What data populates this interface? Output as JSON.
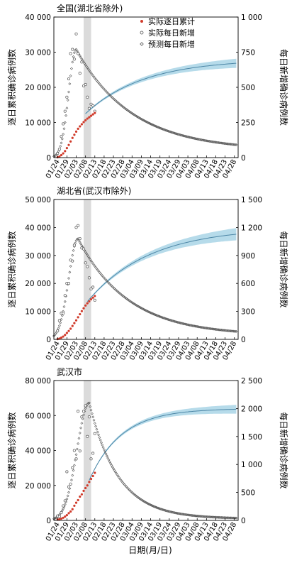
{
  "figure": {
    "xlabel": "日期(月/日)"
  },
  "legend": {
    "entries": [
      {
        "label": "实际逐日累计",
        "color": "#d03a2a",
        "marker": "dot"
      },
      {
        "label": "实际每日新增",
        "color": "#555555",
        "marker": "open-circle"
      },
      {
        "label": "预测每日新增",
        "color": "#555555",
        "marker": "open-diamond"
      }
    ]
  },
  "colors": {
    "band": "#a9d5e6",
    "line": "#4c86a6",
    "shade": "#cfcfcf"
  },
  "chart_data": [
    {
      "type": "scatter",
      "title": "全国(湖北省除外)",
      "ylabel_left": "逐日累积确诊病例数",
      "ylabel_right": "每日新增确诊病例数",
      "x_tick_labels": [
        "01/24",
        "01/29",
        "02/03",
        "02/08",
        "02/13",
        "02/18",
        "02/23",
        "02/28",
        "03/04",
        "03/09",
        "03/14",
        "03/19",
        "03/24",
        "03/29",
        "04/03",
        "04/08",
        "04/13",
        "04/18",
        "04/23",
        "04/28"
      ],
      "x_range_day": [
        -2,
        97
      ],
      "shade_day": [
        14,
        18
      ],
      "y_left": {
        "ticks": [
          "0",
          "10 000",
          "20 000",
          "30 000",
          "40 000"
        ],
        "max": 40000
      },
      "y_right": {
        "ticks": [
          "0",
          "250",
          "500",
          "750",
          "1 000"
        ],
        "max": 1000
      },
      "cumulative_actual": {
        "day": [
          0,
          1,
          2,
          3,
          4,
          5,
          6,
          7,
          8,
          9,
          10,
          11,
          12,
          13,
          14,
          15,
          16,
          17,
          18,
          19,
          20
        ],
        "value": [
          100,
          300,
          700,
          1200,
          1850,
          2700,
          3600,
          4600,
          5600,
          6500,
          7400,
          8200,
          8900,
          9500,
          10100,
          10600,
          11100,
          11500,
          11900,
          12300,
          12700
        ]
      },
      "daily_actual": {
        "day": [
          0,
          1,
          2,
          3,
          4,
          5,
          6,
          7,
          8,
          9,
          10,
          11,
          12,
          13,
          14,
          15,
          16,
          17,
          18,
          19,
          20
        ],
        "value": [
          30,
          60,
          150,
          240,
          330,
          430,
          560,
          740,
          770,
          700,
          880,
          740,
          600,
          680,
          510,
          520,
          430,
          350,
          380,
          370,
          330
        ]
      },
      "cumulative_pred": {
        "day0": 15,
        "day1": 96,
        "start": 12500,
        "plateau": 28000,
        "rate": 0.032,
        "band_halfwidth": [
          200,
          1300
        ]
      },
      "daily_pred": {
        "day0": -2,
        "day1": 96,
        "baseline": 0,
        "peak_value": 770,
        "peak_day": 10,
        "rise_width": 4,
        "decay_tau": 30,
        "tail": 50
      }
    },
    {
      "type": "scatter",
      "title": "湖北省(武汉市除外)",
      "ylabel_left": "逐日累积确诊病例数",
      "ylabel_right": "每日新增确诊病例数",
      "x_tick_labels": [
        "01/24",
        "01/29",
        "02/03",
        "02/08",
        "02/13",
        "02/18",
        "02/23",
        "02/28",
        "03/04",
        "03/09",
        "03/14",
        "03/19",
        "03/24",
        "03/29",
        "04/03",
        "04/08",
        "04/13",
        "04/18",
        "04/23",
        "04/28"
      ],
      "x_range_day": [
        -2,
        97
      ],
      "shade_day": [
        14,
        18
      ],
      "y_left": {
        "ticks": [
          "0",
          "10 000",
          "20 000",
          "30 000",
          "40 000",
          "50 000"
        ],
        "max": 50000
      },
      "y_right": {
        "ticks": [
          "0",
          "300",
          "600",
          "900",
          "1 200",
          "1 500"
        ],
        "max": 1500
      },
      "cumulative_actual": {
        "day": [
          0,
          1,
          2,
          3,
          4,
          5,
          6,
          7,
          8,
          9,
          10,
          11,
          12,
          13,
          14,
          15,
          16,
          17,
          18,
          19,
          20
        ],
        "value": [
          100,
          300,
          600,
          1000,
          1600,
          2300,
          3000,
          3800,
          4800,
          5800,
          6800,
          7900,
          9000,
          10100,
          11100,
          12100,
          12900,
          13600,
          14300,
          14900,
          15500
        ]
      },
      "daily_actual": {
        "day": [
          0,
          1,
          2,
          3,
          4,
          5,
          6,
          7,
          8,
          9,
          10,
          11,
          12,
          13,
          14,
          15,
          16,
          17,
          18,
          19,
          20
        ],
        "value": [
          90,
          200,
          280,
          280,
          470,
          600,
          600,
          850,
          840,
          1010,
          1200,
          1220,
          1080,
          980,
          970,
          820,
          780,
          660,
          540,
          560,
          420
        ]
      },
      "cumulative_pred": {
        "day0": 16,
        "day1": 96,
        "start": 13500,
        "plateau": 40000,
        "rate": 0.03,
        "band_halfwidth": [
          200,
          2200
        ]
      },
      "daily_pred": {
        "day0": -2,
        "day1": 96,
        "baseline": 0,
        "peak_value": 1080,
        "peak_day": 11,
        "rise_width": 5,
        "decay_tau": 27,
        "tail": 40
      }
    },
    {
      "type": "scatter",
      "title": "武汉市",
      "ylabel_left": "逐日累积确诊病例数",
      "ylabel_right": "每日新增确诊病例数",
      "x_tick_labels": [
        "01/24",
        "01/29",
        "02/03",
        "02/08",
        "02/13",
        "02/18",
        "02/23",
        "02/28",
        "03/04",
        "03/09",
        "03/14",
        "03/19",
        "03/24",
        "03/29",
        "04/03",
        "04/08",
        "04/13",
        "04/18",
        "04/23",
        "04/28"
      ],
      "x_range_day": [
        -2,
        97
      ],
      "shade_day": [
        14,
        18
      ],
      "y_left": {
        "ticks": [
          "0",
          "20 000",
          "40 000",
          "60 000",
          "80 000"
        ],
        "max": 80000
      },
      "y_right": {
        "ticks": [
          "0",
          "500",
          "1 000",
          "1 500",
          "2 000",
          "2 500"
        ],
        "max": 2500
      },
      "cumulative_actual": {
        "day": [
          0,
          1,
          2,
          3,
          4,
          5,
          6,
          7,
          8,
          9,
          10,
          11,
          12,
          13,
          14,
          15,
          16,
          17,
          18,
          19,
          20
        ],
        "value": [
          500,
          700,
          1000,
          1500,
          2200,
          3000,
          4100,
          5100,
          6400,
          8400,
          10100,
          11600,
          13600,
          14900,
          16900,
          18500,
          20000,
          22000,
          23700,
          25400,
          27200
        ]
      },
      "daily_actual": {
        "day": [
          0,
          1,
          2,
          3,
          4,
          5,
          6,
          7,
          8,
          9,
          10,
          11,
          12,
          13,
          14,
          15,
          16,
          17,
          18,
          19,
          20
        ],
        "value": [
          80,
          70,
          140,
          260,
          350,
          870,
          600,
          650,
          940,
          1250,
          1100,
          1950,
          1240,
          1850,
          1950,
          2050,
          1500,
          1850,
          1100,
          1200,
          1550
        ]
      },
      "cumulative_pred": {
        "day0": 17,
        "day1": 96,
        "start": 23000,
        "plateau": 64000,
        "rate": 0.058,
        "band_halfwidth": [
          300,
          2500
        ]
      },
      "daily_pred": {
        "day0": -2,
        "day1": 96,
        "baseline": 100,
        "peak_value": 2100,
        "peak_day": 17,
        "rise_width": 6.5,
        "decay_tau": 15.5,
        "tail": 30
      }
    }
  ]
}
